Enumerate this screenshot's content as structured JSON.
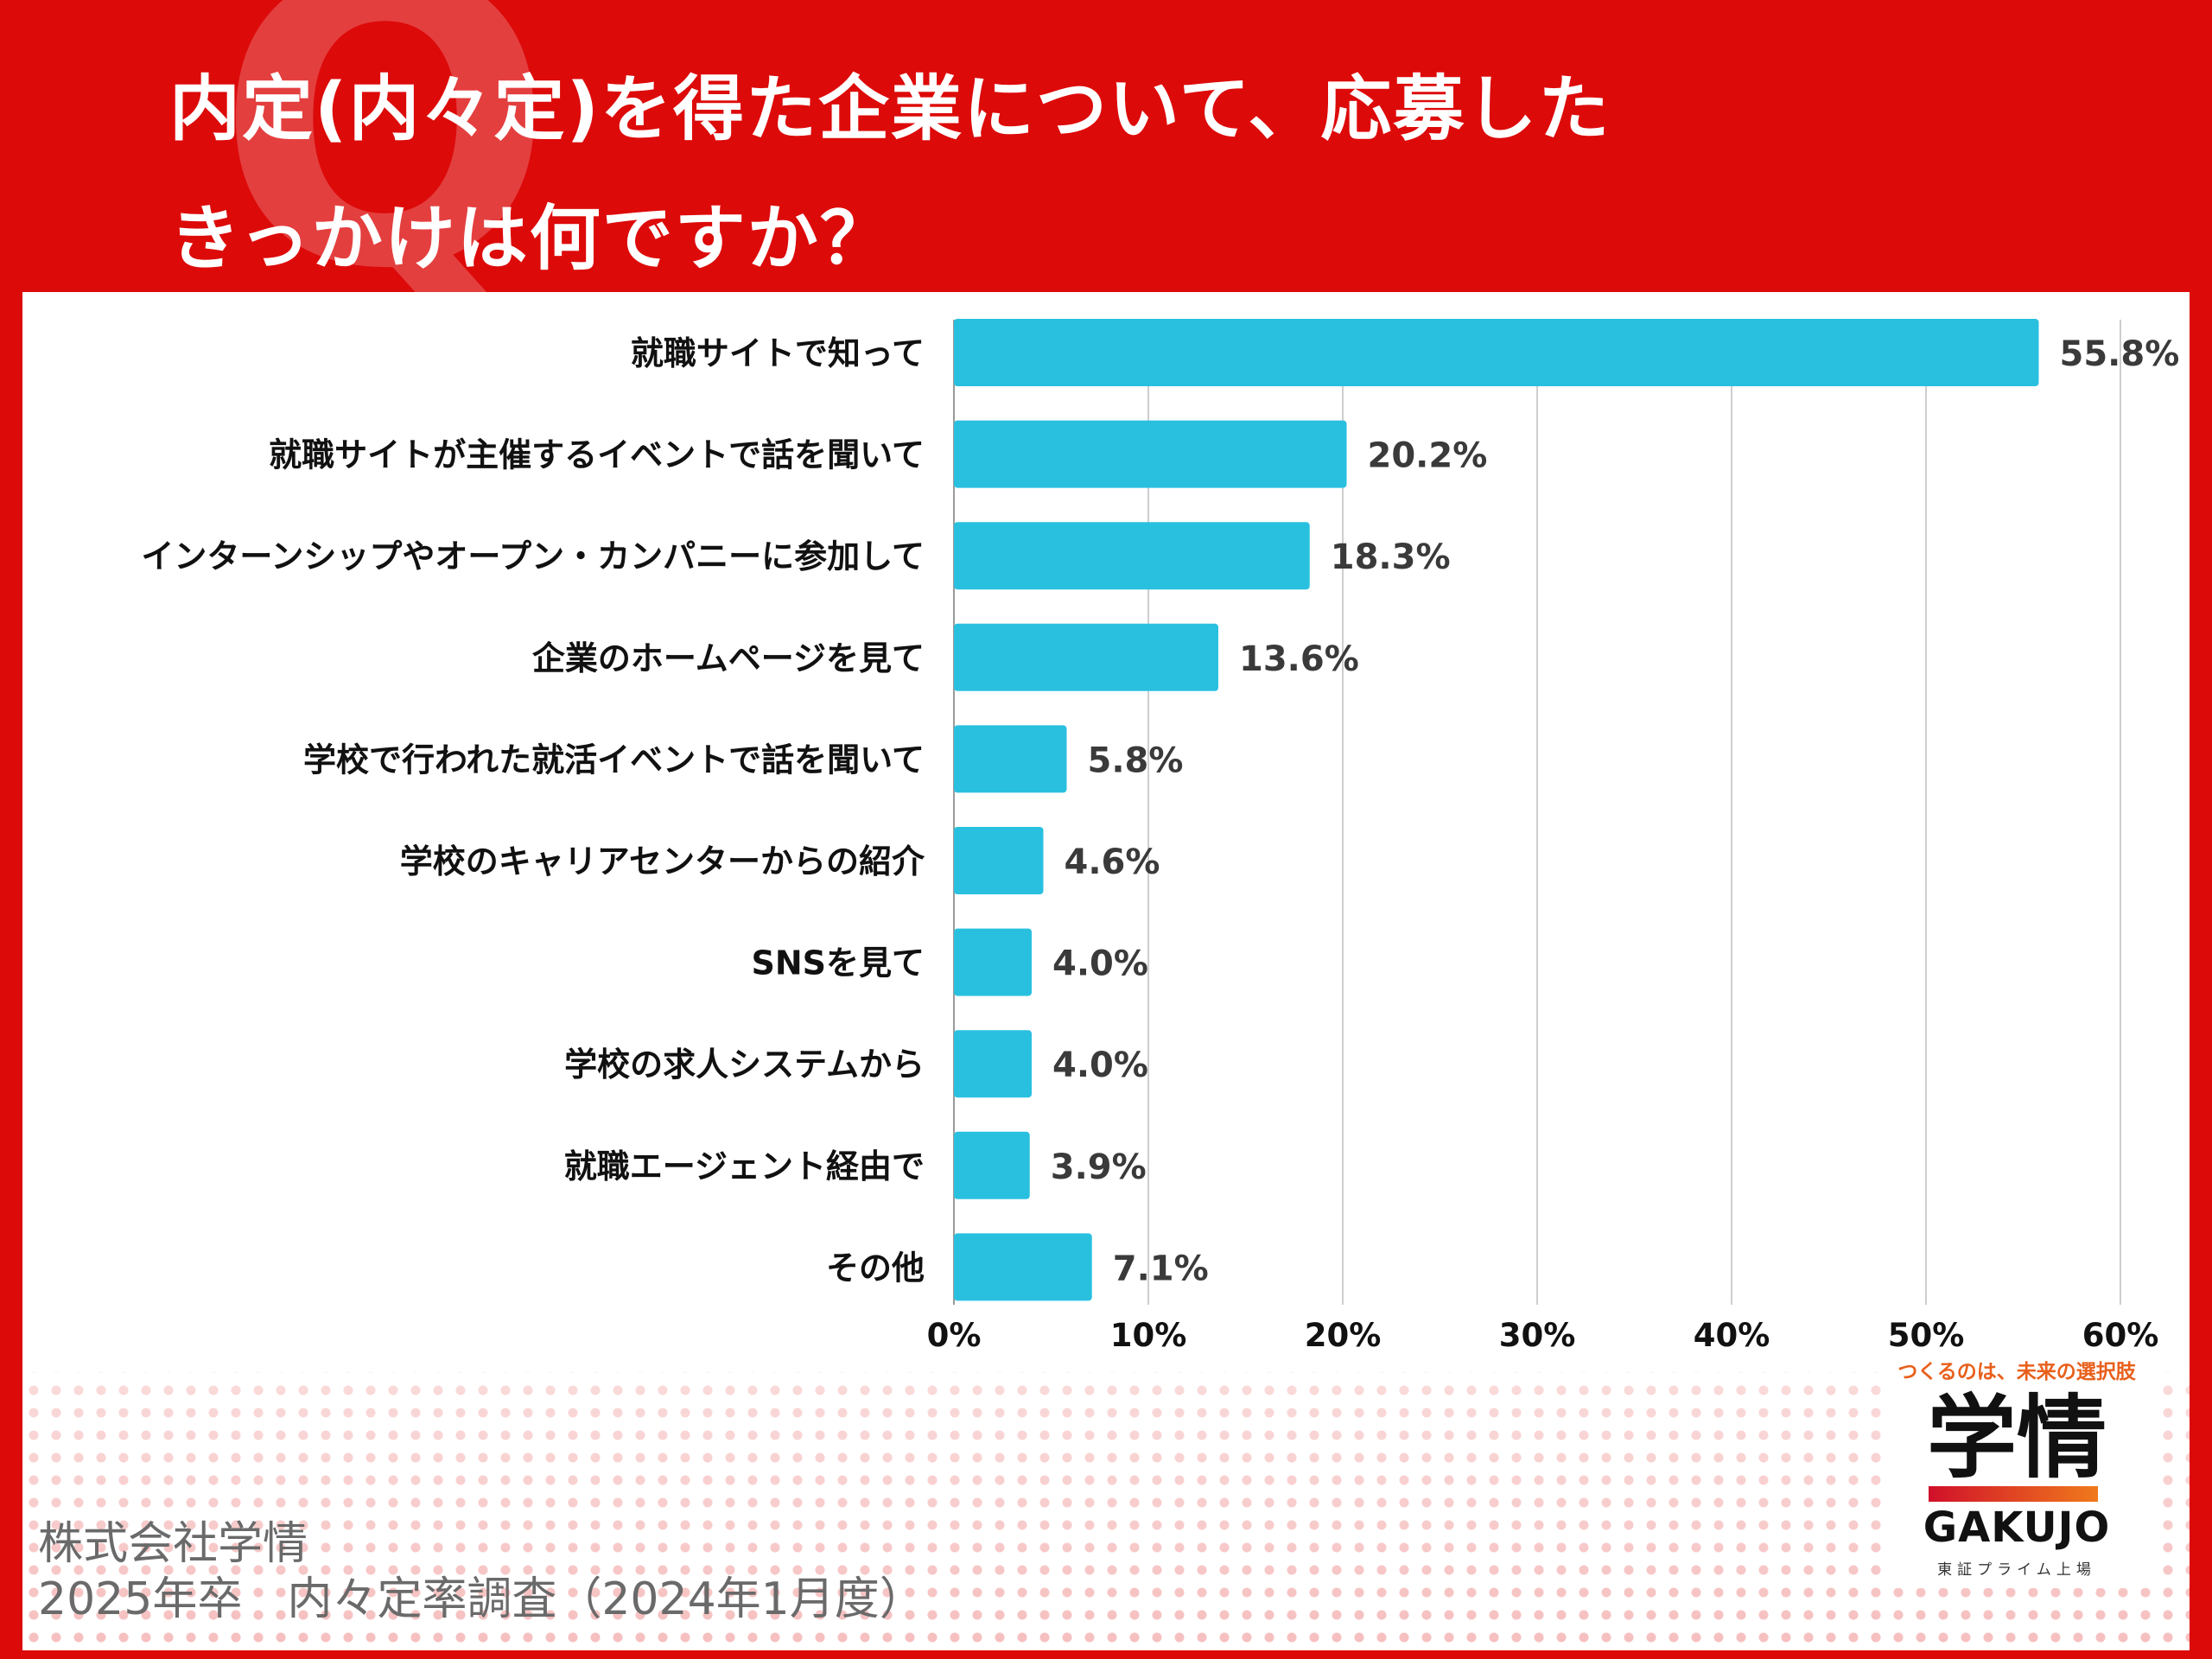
{
  "header": {
    "title_line1": "内定(内々定)を得た企業について、応募した",
    "title_line2": "きっかけは何ですか？",
    "deco_letter": "Q"
  },
  "colors": {
    "background_red": "#dd0a0a",
    "bar": "#29c0e0",
    "grid": "#bdbdbd",
    "value_label": "#3a3a3a",
    "category_label": "#111111"
  },
  "chart_data": {
    "type": "bar",
    "orientation": "horizontal",
    "categories": [
      "就職サイトで知って",
      "就職サイトが主催するイベントで話を聞いて",
      "インターンシップやオープン・カンパニーに参加して",
      "企業のホームページを見て",
      "学校で行われた就活イベントで話を聞いて",
      "学校のキャリアセンターからの紹介",
      "SNSを見て",
      "学校の求人システムから",
      "就職エージェント経由で",
      "その他"
    ],
    "values": [
      55.8,
      20.2,
      18.3,
      13.6,
      5.8,
      4.6,
      4.0,
      4.0,
      3.9,
      7.1
    ],
    "value_labels": [
      "55.8%",
      "20.2%",
      "18.3%",
      "13.6%",
      "5.8%",
      "4.6%",
      "4.0%",
      "4.0%",
      "3.9%",
      "7.1%"
    ],
    "xlim": [
      0,
      60
    ],
    "xticks": [
      0,
      10,
      20,
      30,
      40,
      50,
      60
    ],
    "xtick_labels": [
      "0%",
      "10%",
      "20%",
      "30%",
      "40%",
      "50%",
      "60%"
    ],
    "grid": true,
    "legend": "none"
  },
  "source": {
    "line1": "株式会社学情",
    "line2": "2025年卒　内々定率調査（2024年1月度）"
  },
  "logo": {
    "tagline": "つくるのは、未来の選択肢",
    "mark": "学情",
    "name": "GAKUJO",
    "sub": "東証プライム上場"
  }
}
